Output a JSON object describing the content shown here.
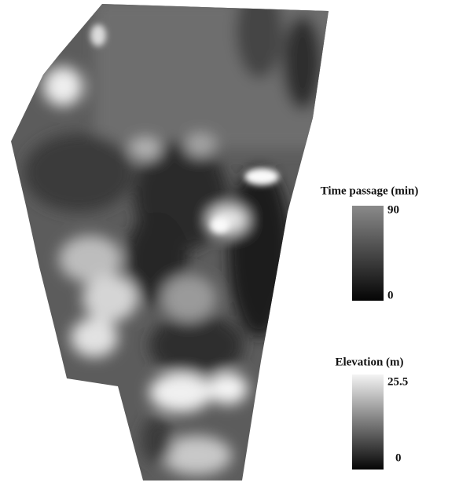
{
  "legends": [
    {
      "title": "Time passage (min)",
      "max": 90,
      "min": 0
    },
    {
      "title": "Elevation (m)",
      "max": 25.5,
      "min": 0
    }
  ]
}
